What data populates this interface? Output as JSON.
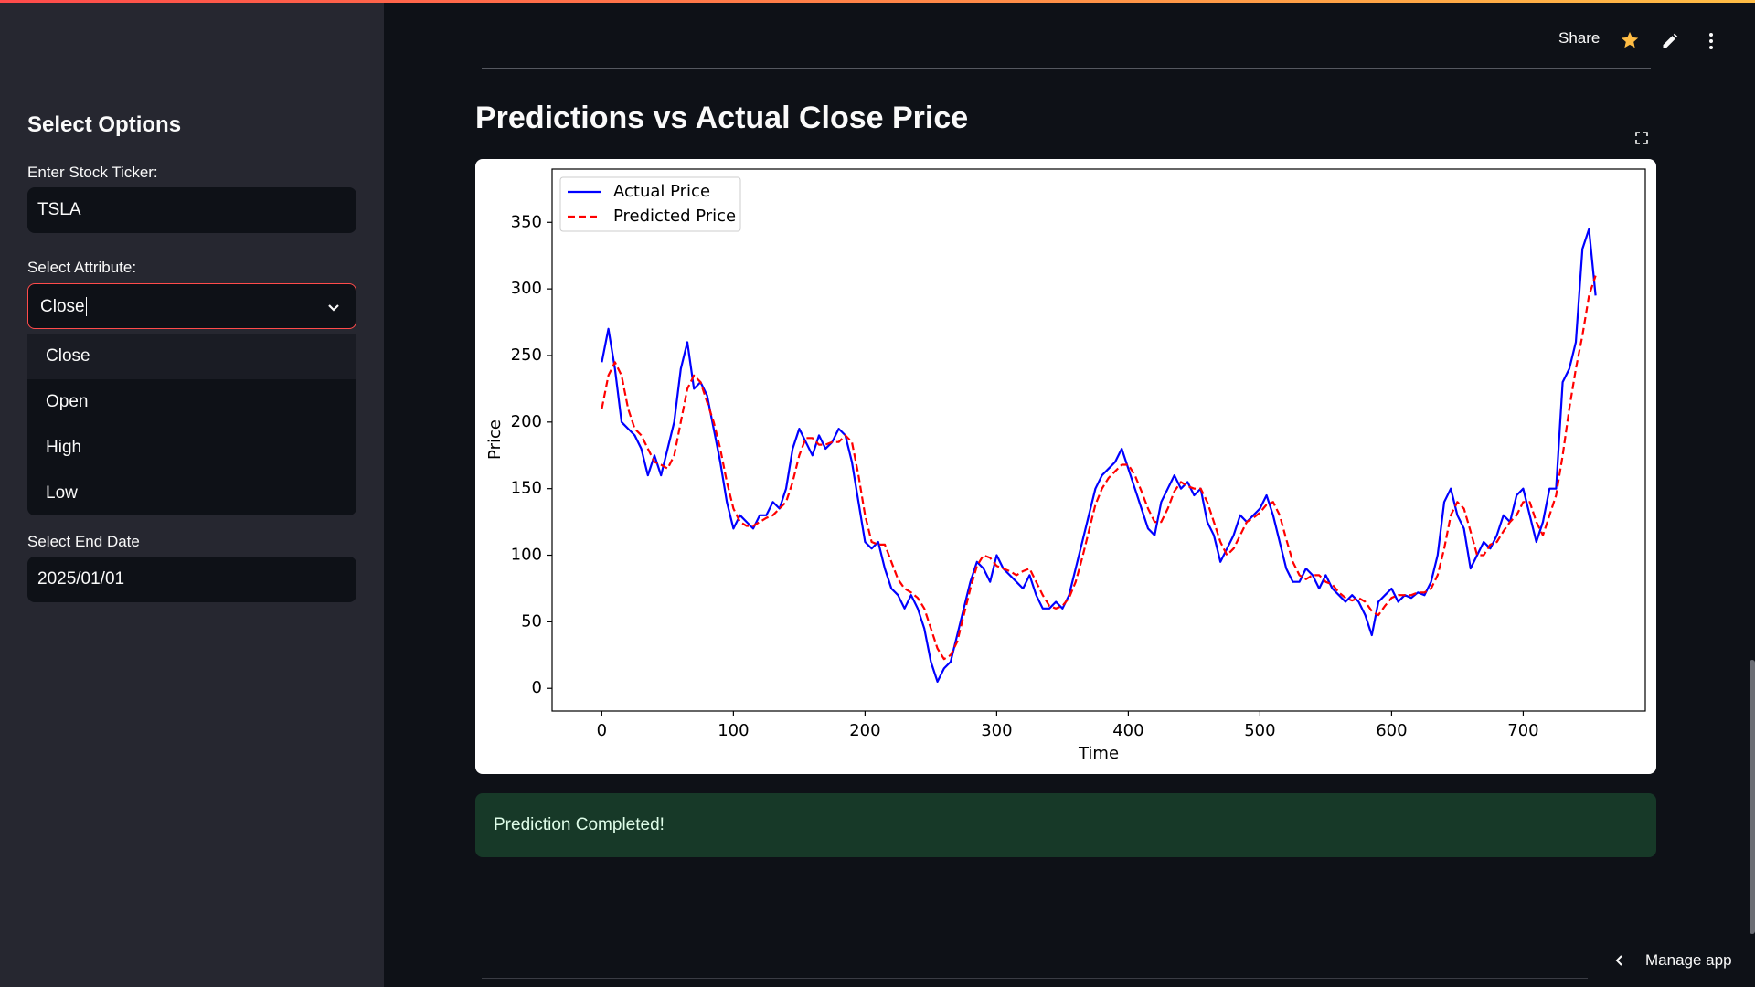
{
  "header": {
    "share": "Share",
    "manage_app": "Manage app"
  },
  "sidebar": {
    "title": "Select Options",
    "ticker_label": "Enter Stock Ticker:",
    "ticker_value": "TSLA",
    "attribute_label": "Select Attribute:",
    "attribute_value": "Close",
    "attribute_options": [
      "Close",
      "Open",
      "High",
      "Low"
    ],
    "end_date_label": "Select End Date",
    "end_date_value": "2025/01/01"
  },
  "main": {
    "title": "Predictions vs Actual Close Price",
    "success": "Prediction Completed!"
  },
  "chart_data": {
    "type": "line",
    "x_label": "Time",
    "y_label": "Price",
    "xlim": [
      -37.75,
      792.75
    ],
    "ylim": [
      -17,
      390
    ],
    "xticks": [
      0,
      100,
      200,
      300,
      400,
      500,
      600,
      700
    ],
    "yticks": [
      0,
      50,
      100,
      150,
      200,
      250,
      300,
      350
    ],
    "grid": false,
    "legend": "upper left",
    "x": [
      0,
      5,
      10,
      15,
      20,
      25,
      30,
      35,
      40,
      45,
      50,
      55,
      60,
      65,
      70,
      75,
      80,
      85,
      90,
      95,
      100,
      105,
      110,
      115,
      120,
      125,
      130,
      135,
      140,
      145,
      150,
      155,
      160,
      165,
      170,
      175,
      180,
      185,
      190,
      195,
      200,
      205,
      210,
      215,
      220,
      225,
      230,
      235,
      240,
      245,
      250,
      255,
      260,
      265,
      270,
      275,
      280,
      285,
      290,
      295,
      300,
      305,
      310,
      315,
      320,
      325,
      330,
      335,
      340,
      345,
      350,
      355,
      360,
      365,
      370,
      375,
      380,
      385,
      390,
      395,
      400,
      405,
      410,
      415,
      420,
      425,
      430,
      435,
      440,
      445,
      450,
      455,
      460,
      465,
      470,
      475,
      480,
      485,
      490,
      495,
      500,
      505,
      510,
      515,
      520,
      525,
      530,
      535,
      540,
      545,
      550,
      555,
      560,
      565,
      570,
      575,
      580,
      585,
      590,
      595,
      600,
      605,
      610,
      615,
      620,
      625,
      630,
      635,
      640,
      645,
      650,
      655,
      660,
      665,
      670,
      675,
      680,
      685,
      690,
      695,
      700,
      705,
      710,
      715,
      720,
      725,
      730,
      735,
      740,
      745,
      750,
      755
    ],
    "series": [
      {
        "name": "Actual Price",
        "color": "#0000ff",
        "dash": false,
        "values": [
          245,
          270,
          240,
          200,
          195,
          190,
          180,
          160,
          175,
          160,
          180,
          200,
          240,
          260,
          225,
          230,
          220,
          195,
          170,
          140,
          120,
          130,
          125,
          120,
          130,
          130,
          140,
          135,
          150,
          180,
          195,
          185,
          175,
          190,
          180,
          185,
          195,
          190,
          170,
          140,
          110,
          105,
          110,
          90,
          75,
          70,
          60,
          70,
          60,
          45,
          20,
          5,
          15,
          20,
          40,
          60,
          80,
          95,
          90,
          80,
          100,
          90,
          85,
          80,
          75,
          85,
          70,
          60,
          60,
          65,
          60,
          70,
          90,
          110,
          130,
          150,
          160,
          165,
          170,
          180,
          165,
          150,
          135,
          120,
          115,
          140,
          150,
          160,
          150,
          155,
          145,
          150,
          125,
          115,
          95,
          105,
          115,
          130,
          125,
          130,
          135,
          145,
          130,
          110,
          90,
          80,
          80,
          90,
          85,
          75,
          85,
          75,
          70,
          65,
          70,
          65,
          55,
          40,
          65,
          70,
          75,
          65,
          70,
          68,
          72,
          70,
          80,
          100,
          140,
          150,
          130,
          120,
          90,
          100,
          110,
          105,
          115,
          130,
          125,
          145,
          150,
          130,
          110,
          125,
          150,
          150,
          230,
          240,
          260,
          330,
          345,
          295
        ]
      },
      {
        "name": "Predicted Price",
        "color": "#ff0000",
        "dash": true,
        "values": [
          210,
          235,
          245,
          235,
          210,
          195,
          190,
          180,
          170,
          168,
          165,
          175,
          200,
          225,
          235,
          230,
          215,
          200,
          180,
          155,
          135,
          125,
          122,
          122,
          125,
          128,
          130,
          135,
          140,
          155,
          175,
          188,
          188,
          183,
          183,
          185,
          185,
          190,
          185,
          160,
          130,
          110,
          108,
          108,
          95,
          82,
          75,
          72,
          68,
          60,
          45,
          30,
          22,
          25,
          35,
          55,
          75,
          92,
          100,
          98,
          92,
          90,
          88,
          85,
          88,
          90,
          80,
          70,
          62,
          60,
          62,
          68,
          80,
          98,
          118,
          138,
          150,
          158,
          163,
          168,
          168,
          160,
          148,
          135,
          125,
          125,
          135,
          148,
          155,
          152,
          150,
          150,
          140,
          125,
          110,
          100,
          105,
          115,
          125,
          128,
          132,
          138,
          140,
          130,
          112,
          95,
          85,
          82,
          85,
          85,
          80,
          78,
          72,
          68,
          66,
          68,
          65,
          58,
          55,
          62,
          68,
          70,
          70,
          70,
          72,
          72,
          75,
          85,
          105,
          130,
          140,
          135,
          118,
          100,
          100,
          108,
          110,
          118,
          125,
          130,
          140,
          140,
          125,
          115,
          130,
          145,
          175,
          210,
          240,
          265,
          295,
          310
        ]
      }
    ]
  }
}
